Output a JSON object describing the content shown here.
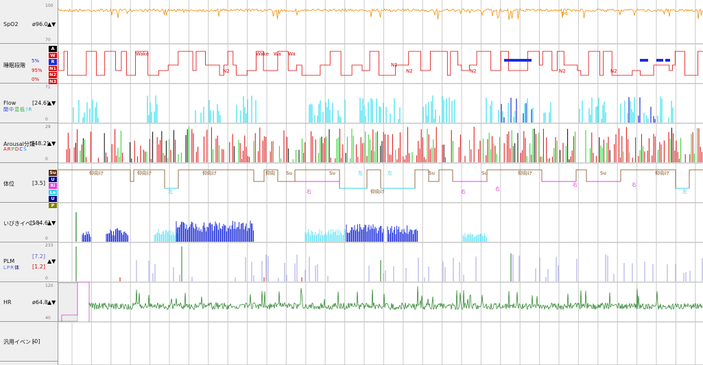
{
  "channels": {
    "spo2": {
      "name": "SpO2",
      "value": "ø96.0",
      "arrows": "▲▼",
      "ymax": "100",
      "ymin": "70"
    },
    "stage": {
      "name": "睡眠段階",
      "pct_r": "5%",
      "pct_n": "95%",
      "pct_w": "0%",
      "keys": [
        {
          "label": "A",
          "color": "#000000"
        },
        {
          "label": "W",
          "color": "#dd0000"
        },
        {
          "label": "R",
          "color": "#1a2bd8"
        },
        {
          "label": "N1",
          "color": "#dd0000"
        },
        {
          "label": "N2",
          "color": "#dd0000"
        },
        {
          "label": "N3",
          "color": "#dd0000"
        }
      ],
      "arrows": "▲▼"
    },
    "flow": {
      "name": "Flow",
      "value": "[24.6]",
      "arrows": "▲▼",
      "ymax": "71",
      "ymin": "0",
      "legend": [
        {
          "t": "閉",
          "c": "#1a2bd8"
        },
        {
          "t": "中",
          "c": "#2a6ae8"
        },
        {
          "t": "混",
          "c": "#2aa52a"
        },
        {
          "t": "低",
          "c": "#2aa52a"
        },
        {
          "t": "ﾌ",
          "c": "#00bcd4"
        },
        {
          "t": "R",
          "c": "#00bcd4"
        }
      ]
    },
    "arousal": {
      "name": "Arousal分類",
      "value": "[48.2]",
      "arrows": "▲▼",
      "ymax": "29",
      "ymin": "0",
      "legend": [
        {
          "t": "A",
          "c": "#dd0000"
        },
        {
          "t": "R",
          "c": "#dd0000"
        },
        {
          "t": "P",
          "c": "#2aa52a"
        },
        {
          "t": "D",
          "c": "#dd0000"
        },
        {
          "t": "C",
          "c": "#1a2bd8"
        },
        {
          "t": "S",
          "c": "#00aacc"
        }
      ]
    },
    "position": {
      "name": "体位",
      "value": "[3.5]",
      "arrows": "▲▼",
      "keys": [
        {
          "label": "Su",
          "color": "#5a2d0c"
        },
        {
          "label": "U",
          "color": "#000080"
        },
        {
          "label": "Ri",
          "color": "#e040e0"
        },
        {
          "label": "Le",
          "color": "#33ccee"
        },
        {
          "label": "U",
          "color": "#000080"
        },
        {
          "label": "P",
          "color": "#808000"
        }
      ]
    },
    "snore": {
      "name": "いびきイベント",
      "value": "[184.6]",
      "arrows": "▲▼",
      "ymin": "0"
    },
    "plm": {
      "name": "PLM",
      "value1": "[7.2]",
      "value2": "[1.2]",
      "arrows": "▲▼",
      "ymax": "233",
      "ymin": "0",
      "legend": [
        {
          "t": "L",
          "c": "#6060d0"
        },
        {
          "t": "P",
          "c": "#6060d0"
        },
        {
          "t": "R",
          "c": "#6060d0"
        },
        {
          "t": "体",
          "c": "#000080"
        }
      ]
    },
    "hr": {
      "name": "HR",
      "value": "ø64.8",
      "arrows": "▲▼",
      "ymax": "120",
      "ymin": "40"
    },
    "generic": {
      "name": "汎用イベント",
      "value": "[0]"
    }
  },
  "stage_labels": [
    "Wake",
    "N2",
    "Wake",
    "Wa",
    "Wa",
    "N1",
    "N2",
    "N2",
    "N2",
    "N2"
  ],
  "position_labels": [
    "仰向け",
    "仰向け",
    "左",
    "仰向け",
    "仰向",
    "Su",
    "右",
    "Su",
    "左",
    "仰向け",
    "左",
    "Su",
    "右",
    "Su",
    "右",
    "仰向け",
    "右",
    "Su",
    "右",
    "仰向け",
    "左"
  ],
  "spo2_label": "96",
  "colors": {
    "spo2": "#f28c00",
    "stage": "#dd0000",
    "rem": "#1a2bd8",
    "flow_light": "#33e0f0",
    "flow_dark": "#1a2bd8",
    "arousal_red": "#dd0000",
    "arousal_green": "#22cc22",
    "arousal_black": "#000000",
    "pos_brown": "#7a4a1a",
    "pos_magenta": "#e040e0",
    "pos_cyan": "#33ccee",
    "snore_dark": "#1a2bd8",
    "snore_light": "#6fe4f4",
    "plm": "#8888dd",
    "hr": "#1a7a1a",
    "grid": "#c8c8c8"
  }
}
